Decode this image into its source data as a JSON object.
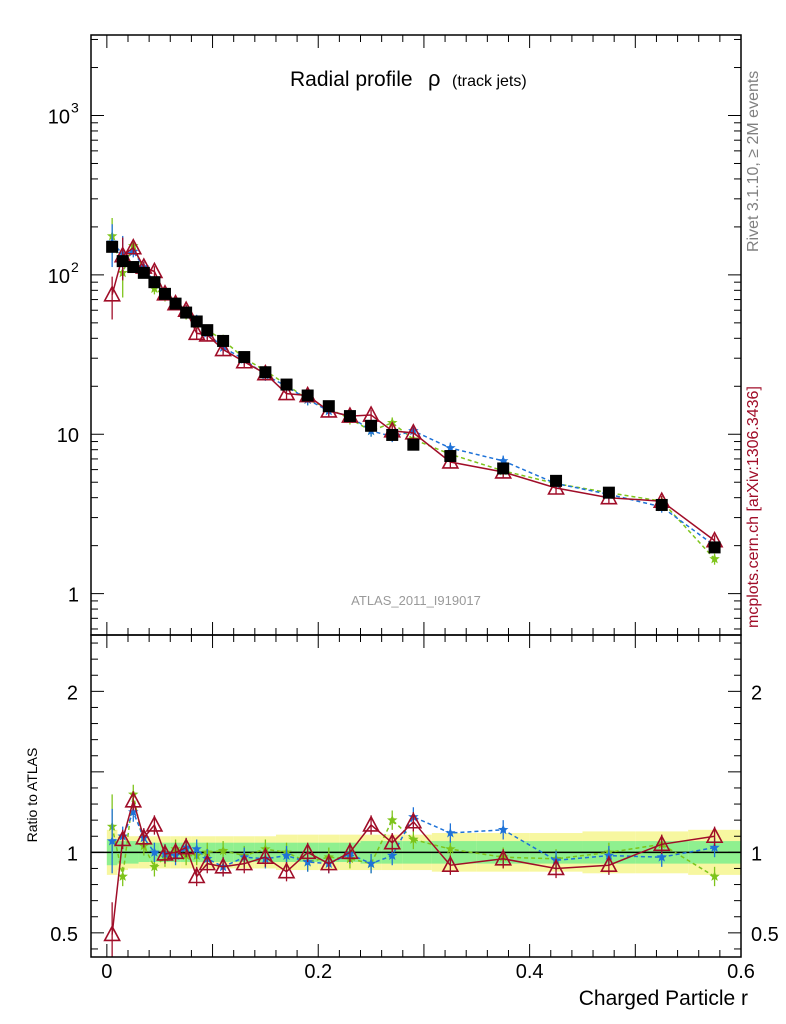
{
  "title_main": "Radial profile",
  "title_rho": "ρ",
  "title_sub": "(track jets)",
  "analysis_id": "ATLAS_2011_I919017",
  "side_rivet": "Rivet 3.1.10, ≥ 2M events",
  "side_mc": "mcplots.cern.ch [arXiv:1306.3436]",
  "colors": {
    "data": "#000000",
    "mc_red": "#a00d28",
    "mc_blue": "#1e72d8",
    "mc_green": "#7ec41b",
    "band_inner": "#8ff08f",
    "band_outer": "#f7f7a0"
  },
  "chart_data": [
    {
      "type": "scatter",
      "panel": "main",
      "xlabel": "Charged Particle r",
      "ylabel": "",
      "y_scale": "log",
      "xlim": [
        -0.015,
        0.6
      ],
      "ylim": [
        0.55,
        3200
      ],
      "y_ticks": [
        {
          "value": 1000,
          "base": "10",
          "exp": "3"
        },
        {
          "value": 100,
          "base": "10",
          "exp": "2"
        },
        {
          "value": 10,
          "base": "10",
          "exp": ""
        },
        {
          "value": 1,
          "base": "1",
          "exp": ""
        }
      ],
      "x": [
        0.005,
        0.015,
        0.025,
        0.035,
        0.045,
        0.055,
        0.065,
        0.075,
        0.085,
        0.095,
        0.11,
        0.13,
        0.15,
        0.17,
        0.19,
        0.21,
        0.23,
        0.25,
        0.27,
        0.29,
        0.325,
        0.375,
        0.425,
        0.475,
        0.525,
        0.575
      ],
      "series": [
        {
          "key": "data",
          "marker": "square",
          "values": [
            150,
            122,
            112,
            103,
            90,
            76,
            66,
            58,
            51,
            45,
            38.5,
            30.5,
            24.5,
            20.5,
            17.5,
            15,
            13,
            11.3,
            9.9,
            8.6,
            7.3,
            6.1,
            5.1,
            4.3,
            3.6,
            1.95
          ]
        },
        {
          "key": "mc_red",
          "marker": "triangle",
          "dash": "solid",
          "values": [
            75,
            132,
            148,
            112,
            105,
            76,
            66,
            60,
            43,
            42,
            34,
            28.5,
            24,
            18,
            17.5,
            14,
            13,
            13.2,
            10.5,
            10.2,
            6.7,
            5.8,
            4.6,
            4,
            3.8,
            2.15
          ]
        },
        {
          "key": "mc_blue",
          "marker": "star",
          "dash": "dashed",
          "values": [
            160,
            135,
            140,
            112,
            90,
            75,
            65,
            60,
            52,
            43,
            35,
            29.5,
            23.5,
            20,
            16.5,
            14,
            13,
            10.5,
            9.7,
            10.5,
            8.2,
            6.8,
            4.9,
            4.2,
            3.5,
            2.0
          ]
        },
        {
          "key": "mc_green",
          "marker": "star",
          "dash": "dashed",
          "values": [
            175,
            103,
            152,
            107,
            82,
            74,
            67,
            57,
            50,
            45,
            39,
            30,
            25,
            20.5,
            16.5,
            14.5,
            12.5,
            10.5,
            11.8,
            9.3,
            7.5,
            5.9,
            4.9,
            4.3,
            3.8,
            1.65
          ]
        }
      ]
    },
    {
      "type": "scatter",
      "panel": "ratio",
      "ylabel": "Ratio to ATLAS",
      "xlabel": "Charged Particle r",
      "xlim": [
        -0.015,
        0.6
      ],
      "ylim": [
        0.35,
        2.35
      ],
      "y_ticks": [
        {
          "value": 2,
          "label": "2"
        },
        {
          "value": 1,
          "label": "1"
        },
        {
          "value": 0.5,
          "label": "0.5"
        }
      ],
      "x_ticks": [
        {
          "value": 0,
          "label": "0"
        },
        {
          "value": 0.2,
          "label": "0.2"
        },
        {
          "value": 0.4,
          "label": "0.4"
        },
        {
          "value": 0.6,
          "label": "0.6"
        }
      ],
      "band_inner_halfwidth": [
        0.08,
        0.07,
        0.07,
        0.06,
        0.06,
        0.06,
        0.06,
        0.06,
        0.06,
        0.06,
        0.06,
        0.06,
        0.06,
        0.06,
        0.06,
        0.06,
        0.06,
        0.07,
        0.07,
        0.07,
        0.07,
        0.07,
        0.07,
        0.07,
        0.07,
        0.07
      ],
      "band_outer_halfwidth": [
        0.14,
        0.11,
        0.1,
        0.1,
        0.1,
        0.1,
        0.1,
        0.1,
        0.1,
        0.1,
        0.1,
        0.1,
        0.1,
        0.11,
        0.11,
        0.11,
        0.11,
        0.11,
        0.11,
        0.11,
        0.12,
        0.12,
        0.12,
        0.13,
        0.13,
        0.14
      ],
      "series": [
        {
          "key": "mc_red",
          "marker": "triangle",
          "dash": "solid",
          "values": [
            0.49,
            1.08,
            1.32,
            1.09,
            1.17,
            0.99,
            1.0,
            1.03,
            0.85,
            0.93,
            0.91,
            0.93,
            0.97,
            0.88,
            1.0,
            0.93,
            1.0,
            1.17,
            1.06,
            1.19,
            0.92,
            0.96,
            0.9,
            0.92,
            1.05,
            1.1
          ]
        },
        {
          "key": "mc_blue",
          "marker": "star",
          "dash": "dashed",
          "values": [
            1.07,
            1.1,
            1.25,
            1.09,
            1.0,
            0.99,
            0.98,
            1.03,
            1.02,
            0.96,
            0.91,
            0.97,
            0.96,
            0.98,
            0.94,
            0.93,
            0.99,
            0.93,
            0.98,
            1.22,
            1.12,
            1.14,
            0.95,
            0.98,
            0.97,
            1.03
          ]
        },
        {
          "key": "mc_green",
          "marker": "star",
          "dash": "dashed",
          "values": [
            1.16,
            0.85,
            1.36,
            1.04,
            0.91,
            0.97,
            1.02,
            0.98,
            0.98,
            1.0,
            1.01,
            0.98,
            1.02,
            1.0,
            0.94,
            0.97,
            0.96,
            0.93,
            1.2,
            1.08,
            1.02,
            0.97,
            0.96,
            1.0,
            1.05,
            0.85
          ]
        }
      ]
    }
  ]
}
